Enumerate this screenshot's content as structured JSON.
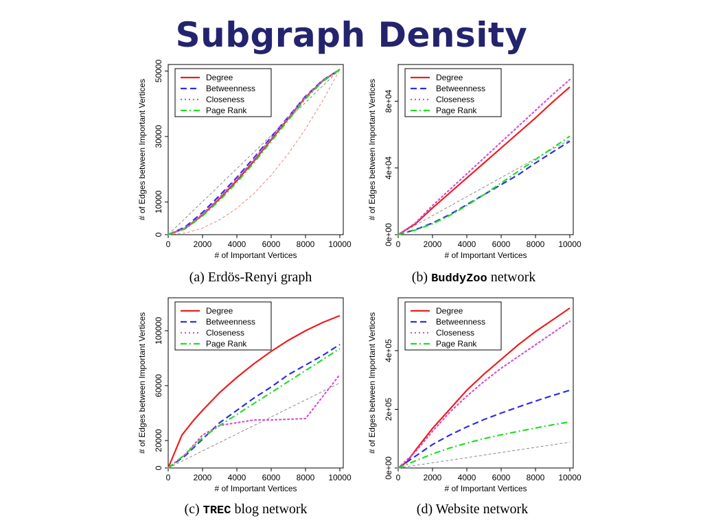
{
  "slide": {
    "title": "Subgraph Density"
  },
  "legend": {
    "degree": "Degree",
    "betweenness": "Betweenness",
    "closeness": "Closeness",
    "pagerank": "Page Rank"
  },
  "colors": {
    "degree": "#ee1c1c",
    "betweenness": "#2e2ee8",
    "closeness": "#d64fd6",
    "pagerank": "#22dd22",
    "reference": "#888888",
    "title": "#23236e"
  },
  "chart_data": [
    {
      "type": "line",
      "caption": {
        "prefix": "(a)",
        "mono": "",
        "text": "Erdös-Renyi graph"
      },
      "xlabel": "# of Important Vertices",
      "ylabel": "# of Edges between Important Vertices",
      "xlim": [
        0,
        10200
      ],
      "ylim": [
        0,
        52000
      ],
      "xticks": [
        0,
        2000,
        4000,
        6000,
        8000,
        10000
      ],
      "xtick_labels": [
        "0",
        "2000",
        "4000",
        "6000",
        "8000",
        "10000"
      ],
      "yticks": [
        0,
        10000,
        30000,
        50000
      ],
      "ytick_labels": [
        "0",
        "10000",
        "30000",
        "50000"
      ],
      "legend_position": "top-left",
      "series": [
        {
          "name": "Degree",
          "key": "degree",
          "style": "solid",
          "x": [
            0,
            1000,
            2000,
            3000,
            4000,
            5000,
            6000,
            7000,
            8000,
            9000,
            10000
          ],
          "y": [
            0,
            2000,
            6000,
            11000,
            16500,
            22500,
            29000,
            35500,
            42000,
            47000,
            50500
          ]
        },
        {
          "name": "Betweenness",
          "key": "betweenness",
          "style": "dashed",
          "x": [
            0,
            1000,
            2000,
            3000,
            4000,
            5000,
            6000,
            7000,
            8000,
            9000,
            10000
          ],
          "y": [
            0,
            2400,
            6800,
            12000,
            17500,
            23500,
            29800,
            36000,
            42300,
            47200,
            50500
          ]
        },
        {
          "name": "Closeness",
          "key": "closeness",
          "style": "dotted",
          "x": [
            0,
            1000,
            2000,
            3000,
            4000,
            5000,
            6000,
            7000,
            8000,
            9000,
            10000
          ],
          "y": [
            0,
            2100,
            6300,
            11400,
            17000,
            23000,
            29400,
            35800,
            42100,
            47100,
            50500
          ]
        },
        {
          "name": "Page Rank",
          "key": "pagerank",
          "style": "dashdot",
          "x": [
            0,
            1000,
            2000,
            3000,
            4000,
            5000,
            6000,
            7000,
            8000,
            9000,
            10000
          ],
          "y": [
            0,
            1800,
            5700,
            10500,
            16000,
            22000,
            28500,
            35000,
            41500,
            46800,
            50500
          ]
        },
        {
          "name": "",
          "key": "reference",
          "style": "thin-dashed",
          "x": [
            0,
            10000
          ],
          "y": [
            0,
            50500
          ]
        },
        {
          "name": "",
          "key": "reference-quadratic",
          "style": "thin-dashed-red",
          "x": [
            0,
            1000,
            2000,
            3000,
            4000,
            5000,
            6000,
            7000,
            8000,
            9000,
            10000
          ],
          "y": [
            0,
            505,
            2020,
            4545,
            8080,
            12625,
            18180,
            24745,
            32320,
            40905,
            50500
          ]
        }
      ]
    },
    {
      "type": "line",
      "caption": {
        "prefix": "(b)",
        "mono": "BuddyZoo",
        "text": "network"
      },
      "xlabel": "# of Important Vertices",
      "ylabel": "# of Edges between Important Vertices",
      "xlim": [
        0,
        10200
      ],
      "ylim": [
        0,
        102000
      ],
      "xticks": [
        0,
        2000,
        4000,
        6000,
        8000,
        10000
      ],
      "xtick_labels": [
        "0",
        "2000",
        "4000",
        "6000",
        "8000",
        "10000"
      ],
      "yticks": [
        0,
        40000,
        80000
      ],
      "ytick_labels": [
        "0e+00",
        "4e+04",
        "8e+04"
      ],
      "legend_position": "top-left",
      "series": [
        {
          "name": "Degree",
          "key": "degree",
          "style": "solid",
          "x": [
            0,
            1000,
            2000,
            3000,
            4000,
            5000,
            6000,
            7000,
            8000,
            9000,
            10000
          ],
          "y": [
            0,
            6500,
            16000,
            25000,
            34000,
            43000,
            52000,
            61000,
            70000,
            79500,
            88500
          ]
        },
        {
          "name": "Betweenness",
          "key": "betweenness",
          "style": "dashed",
          "x": [
            0,
            1000,
            2000,
            3000,
            4000,
            5000,
            6000,
            7000,
            8000,
            9000,
            10000
          ],
          "y": [
            0,
            3000,
            7000,
            12000,
            18000,
            24000,
            30000,
            36000,
            43000,
            49500,
            56000
          ]
        },
        {
          "name": "Closeness",
          "key": "closeness",
          "style": "dotted",
          "x": [
            0,
            1000,
            2000,
            3000,
            4000,
            5000,
            6000,
            7000,
            8000,
            9000,
            10000
          ],
          "y": [
            0,
            7000,
            17500,
            27000,
            36500,
            46000,
            55500,
            65000,
            74500,
            84000,
            93000
          ]
        },
        {
          "name": "Page Rank",
          "key": "pagerank",
          "style": "dashdot",
          "x": [
            0,
            1000,
            2000,
            3000,
            4000,
            5000,
            6000,
            7000,
            8000,
            9000,
            10000
          ],
          "y": [
            0,
            2800,
            6500,
            11500,
            17500,
            24000,
            31000,
            38000,
            45000,
            52000,
            59000
          ]
        },
        {
          "name": "",
          "key": "reference",
          "style": "thin-dashed",
          "x": [
            0,
            10000
          ],
          "y": [
            0,
            57000
          ]
        }
      ]
    },
    {
      "type": "line",
      "caption": {
        "prefix": "(c)",
        "mono": "TREC",
        "text": "blog network"
      },
      "xlabel": "# of Important Vertices",
      "ylabel": "# of Edges between Important Vertices",
      "xlim": [
        0,
        10200
      ],
      "ylim": [
        0,
        124000
      ],
      "xticks": [
        0,
        2000,
        4000,
        6000,
        8000,
        10000
      ],
      "xtick_labels": [
        "0",
        "2000",
        "4000",
        "6000",
        "8000",
        "10000"
      ],
      "yticks": [
        0,
        20000,
        60000,
        100000
      ],
      "ytick_labels": [
        "0",
        "20000",
        "60000",
        "100000"
      ],
      "legend_position": "top-left",
      "series": [
        {
          "name": "Degree",
          "key": "degree",
          "style": "solid",
          "x": [
            0,
            400,
            800,
            1500,
            2000,
            3000,
            4000,
            5000,
            6000,
            7000,
            8000,
            9000,
            10000
          ],
          "y": [
            0,
            12000,
            24000,
            35000,
            42000,
            55000,
            66000,
            76000,
            85000,
            93000,
            100000,
            106000,
            111000
          ]
        },
        {
          "name": "Betweenness",
          "key": "betweenness",
          "style": "dashed",
          "x": [
            0,
            1000,
            2000,
            3000,
            4000,
            5000,
            6000,
            7000,
            8000,
            9000,
            10000
          ],
          "y": [
            0,
            9000,
            21000,
            33000,
            42000,
            51000,
            59000,
            68000,
            75000,
            82000,
            90000
          ]
        },
        {
          "name": "Closeness",
          "key": "closeness",
          "style": "dotted",
          "x": [
            0,
            1000,
            2000,
            3000,
            4000,
            5000,
            6000,
            7000,
            8000,
            8500,
            9000,
            10000
          ],
          "y": [
            0,
            10000,
            24000,
            31000,
            33000,
            35000,
            35000,
            35500,
            36000,
            44000,
            52000,
            68000
          ]
        },
        {
          "name": "Page Rank",
          "key": "pagerank",
          "style": "dashdot",
          "x": [
            0,
            1000,
            2000,
            3000,
            4000,
            5000,
            6000,
            7000,
            8000,
            9000,
            10000
          ],
          "y": [
            0,
            10000,
            22000,
            31000,
            39000,
            47000,
            55000,
            63000,
            71000,
            79000,
            87000
          ]
        },
        {
          "name": "",
          "key": "reference",
          "style": "thin-dashed",
          "x": [
            0,
            10000
          ],
          "y": [
            0,
            62000
          ]
        }
      ]
    },
    {
      "type": "line",
      "caption": {
        "prefix": "(d)",
        "mono": "",
        "text": "Website network"
      },
      "xlabel": "# of Important Vertices",
      "ylabel": "# of Edges between Important Vertices",
      "xlim": [
        0,
        10200
      ],
      "ylim": [
        0,
        580000
      ],
      "xticks": [
        0,
        2000,
        4000,
        6000,
        8000,
        10000
      ],
      "xtick_labels": [
        "0",
        "2000",
        "4000",
        "6000",
        "8000",
        "10000"
      ],
      "yticks": [
        0,
        200000,
        400000
      ],
      "ytick_labels": [
        "0e+00",
        "2e+05",
        "4e+05"
      ],
      "legend_position": "top-left",
      "series": [
        {
          "name": "Degree",
          "key": "degree",
          "style": "solid",
          "x": [
            0,
            500,
            1000,
            2000,
            3000,
            4000,
            5000,
            6000,
            7000,
            8000,
            9000,
            10000
          ],
          "y": [
            0,
            20000,
            60000,
            135000,
            200000,
            265000,
            320000,
            370000,
            420000,
            465000,
            505000,
            545000
          ]
        },
        {
          "name": "Betweenness",
          "key": "betweenness",
          "style": "dashed",
          "x": [
            0,
            1000,
            2000,
            3000,
            4000,
            5000,
            6000,
            7000,
            8000,
            9000,
            10000
          ],
          "y": [
            0,
            40000,
            80000,
            112000,
            140000,
            165000,
            187000,
            208000,
            228000,
            247000,
            265000
          ]
        },
        {
          "name": "Closeness",
          "key": "closeness",
          "style": "dotted",
          "x": [
            0,
            1000,
            2000,
            3000,
            4000,
            5000,
            6000,
            7000,
            8000,
            9000,
            10000
          ],
          "y": [
            0,
            55000,
            125000,
            190000,
            245000,
            295000,
            340000,
            380000,
            420000,
            460000,
            500000
          ]
        },
        {
          "name": "Page Rank",
          "key": "pagerank",
          "style": "dashdot",
          "x": [
            0,
            1000,
            2000,
            3000,
            4000,
            5000,
            6000,
            7000,
            8000,
            9000,
            10000
          ],
          "y": [
            0,
            24000,
            48000,
            68000,
            85000,
            100000,
            113000,
            125000,
            136000,
            147000,
            157000
          ]
        },
        {
          "name": "",
          "key": "reference",
          "style": "thin-dashed",
          "x": [
            0,
            10000
          ],
          "y": [
            0,
            88000
          ]
        }
      ]
    }
  ]
}
